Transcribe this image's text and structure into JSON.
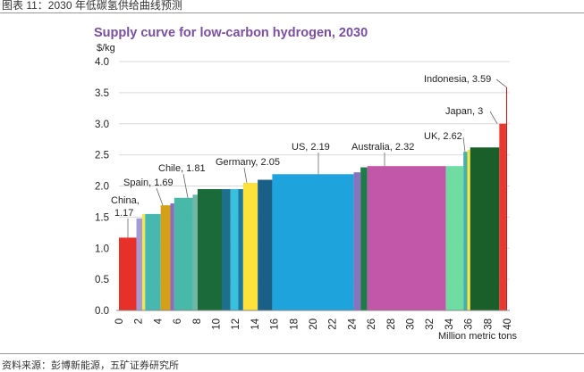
{
  "page": {
    "caption": "图表 11：2030 年低碳氢供给曲线预测",
    "source": "资料来源：彭博新能源，五矿证券研究所"
  },
  "chart_data": {
    "type": "bar",
    "variant": "supply-curve",
    "title": "Supply curve for low-carbon hydrogen, 2030",
    "ylabel": "$/kg",
    "xlabel": "Million metric tons",
    "xlim": [
      0,
      40
    ],
    "ylim": [
      0,
      4.0
    ],
    "x_ticks": [
      0,
      2,
      4,
      6,
      8,
      10,
      12,
      14,
      16,
      18,
      20,
      22,
      24,
      26,
      28,
      30,
      32,
      34,
      36,
      38,
      40
    ],
    "y_ticks": [
      "0.0",
      "0.5",
      "1.0",
      "1.5",
      "2.0",
      "2.5",
      "3.0",
      "3.5",
      "4.0"
    ],
    "grid": true,
    "segments": [
      {
        "x0": 0.0,
        "x1": 1.8,
        "value": 1.17,
        "color": "#e8302a"
      },
      {
        "x0": 1.8,
        "x1": 2.4,
        "value": 1.48,
        "color": "#a59ad6"
      },
      {
        "x0": 2.4,
        "x1": 2.7,
        "value": 1.55,
        "color": "#f2e64a"
      },
      {
        "x0": 2.7,
        "x1": 4.3,
        "value": 1.55,
        "color": "#46b8b0"
      },
      {
        "x0": 4.3,
        "x1": 5.3,
        "value": 1.69,
        "color": "#d4a017"
      },
      {
        "x0": 5.3,
        "x1": 5.7,
        "value": 1.72,
        "color": "#8e6bbf"
      },
      {
        "x0": 5.7,
        "x1": 7.6,
        "value": 1.81,
        "color": "#48b8a8"
      },
      {
        "x0": 7.6,
        "x1": 8.1,
        "value": 1.86,
        "color": "#6fb8a8"
      },
      {
        "x0": 8.1,
        "x1": 10.6,
        "value": 1.95,
        "color": "#1b6b3a"
      },
      {
        "x0": 10.6,
        "x1": 11.5,
        "value": 1.95,
        "color": "#1d6f8c"
      },
      {
        "x0": 11.5,
        "x1": 12.3,
        "value": 1.95,
        "color": "#38c0de"
      },
      {
        "x0": 12.3,
        "x1": 12.8,
        "value": 1.95,
        "color": "#1d7a9a"
      },
      {
        "x0": 12.8,
        "x1": 14.3,
        "value": 2.05,
        "color": "#fde23c"
      },
      {
        "x0": 14.3,
        "x1": 15.8,
        "value": 2.1,
        "color": "#1a5f85"
      },
      {
        "x0": 15.8,
        "x1": 24.2,
        "value": 2.19,
        "color": "#1ea3dc"
      },
      {
        "x0": 24.2,
        "x1": 24.9,
        "value": 2.22,
        "color": "#8a72be"
      },
      {
        "x0": 24.9,
        "x1": 25.6,
        "value": 2.3,
        "color": "#1f7a4a"
      },
      {
        "x0": 25.6,
        "x1": 33.7,
        "value": 2.32,
        "color": "#c256a8"
      },
      {
        "x0": 33.7,
        "x1": 35.5,
        "value": 2.32,
        "color": "#6fdca2"
      },
      {
        "x0": 35.5,
        "x1": 35.9,
        "value": 2.55,
        "color": "#48b0a8"
      },
      {
        "x0": 35.9,
        "x1": 36.2,
        "value": 2.58,
        "color": "#f2e64a"
      },
      {
        "x0": 36.2,
        "x1": 39.2,
        "value": 2.62,
        "color": "#1a5f2a"
      },
      {
        "x0": 39.2,
        "x1": 39.9,
        "value": 3.0,
        "color": "#e83830"
      },
      {
        "x0": 39.9,
        "x1": 40.0,
        "value": 3.59,
        "color": "#c01e1e"
      }
    ],
    "annotations": [
      {
        "label": "China,",
        "label2": "1.17",
        "value": 1.17
      },
      {
        "label": "Spain, 1.69",
        "value": 1.69
      },
      {
        "label": "Chile, 1.81",
        "value": 1.81
      },
      {
        "label": "Germany, 2.05",
        "value": 2.05
      },
      {
        "label": "US, 2.19",
        "value": 2.19
      },
      {
        "label": "Australia, 2.32",
        "value": 2.32
      },
      {
        "label": "UK, 2.62",
        "value": 2.62
      },
      {
        "label": "Japan, 3",
        "value": 3.0
      },
      {
        "label": "Indonesia, 3.59",
        "value": 3.59
      }
    ]
  }
}
